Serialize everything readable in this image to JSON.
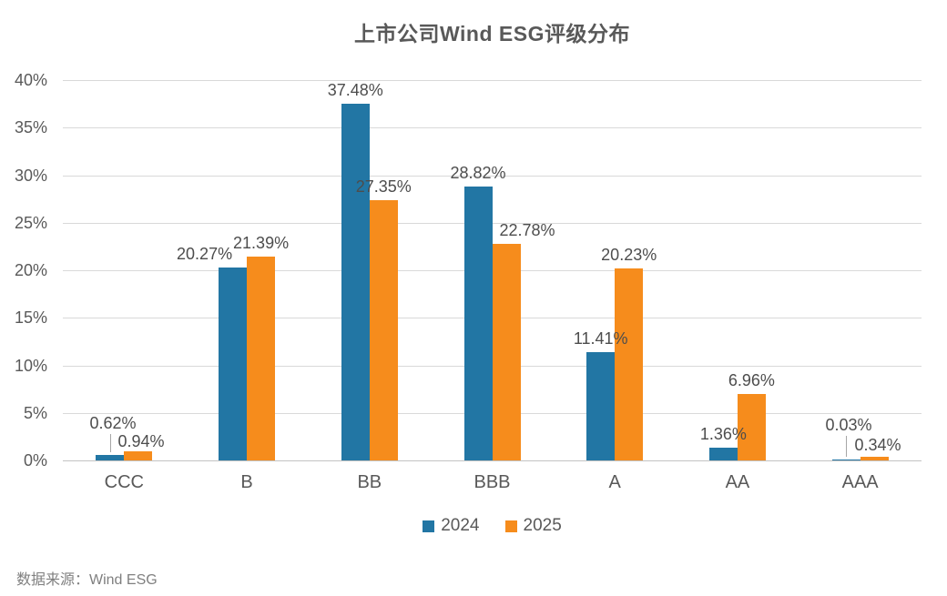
{
  "chart_data": {
    "type": "bar",
    "title": "上市公司Wind ESG评级分布",
    "categories": [
      "CCC",
      "B",
      "BB",
      "BBB",
      "A",
      "AA",
      "AAA"
    ],
    "series": [
      {
        "name": "2024",
        "color": "#2276A4",
        "values": [
          0.62,
          20.27,
          37.48,
          28.82,
          11.41,
          1.36,
          0.03
        ]
      },
      {
        "name": "2025",
        "color": "#F68C1C",
        "values": [
          0.94,
          21.39,
          27.35,
          22.78,
          20.23,
          6.96,
          0.34
        ]
      }
    ],
    "value_suffix": "%",
    "data_labels": [
      "0.62%",
      "20.27%",
      "37.48%",
      "28.82%",
      "11.41%",
      "1.36%",
      "0.03%",
      "0.94%",
      "21.39%",
      "27.35%",
      "22.78%",
      "20.23%",
      "6.96%",
      "0.34%"
    ],
    "y_ticks": [
      "0%",
      "5%",
      "10%",
      "15%",
      "20%",
      "25%",
      "30%",
      "35%",
      "40%"
    ],
    "ylim": [
      0,
      40
    ],
    "xlabel": "",
    "ylabel": "",
    "grid": true,
    "legend_position": "bottom"
  },
  "footer": {
    "source": "数据来源：Wind ESG"
  },
  "colors": {
    "series_2024": "#2276A4",
    "series_2025": "#F68C1C",
    "gridline": "#D9D9D9",
    "axis_text": "#595959",
    "data_label_text": "#4D4D4D",
    "title_text": "#595959",
    "footer_text": "#7F7F7F",
    "leader_line": "#A6A6A6",
    "background": "#FFFFFF"
  }
}
